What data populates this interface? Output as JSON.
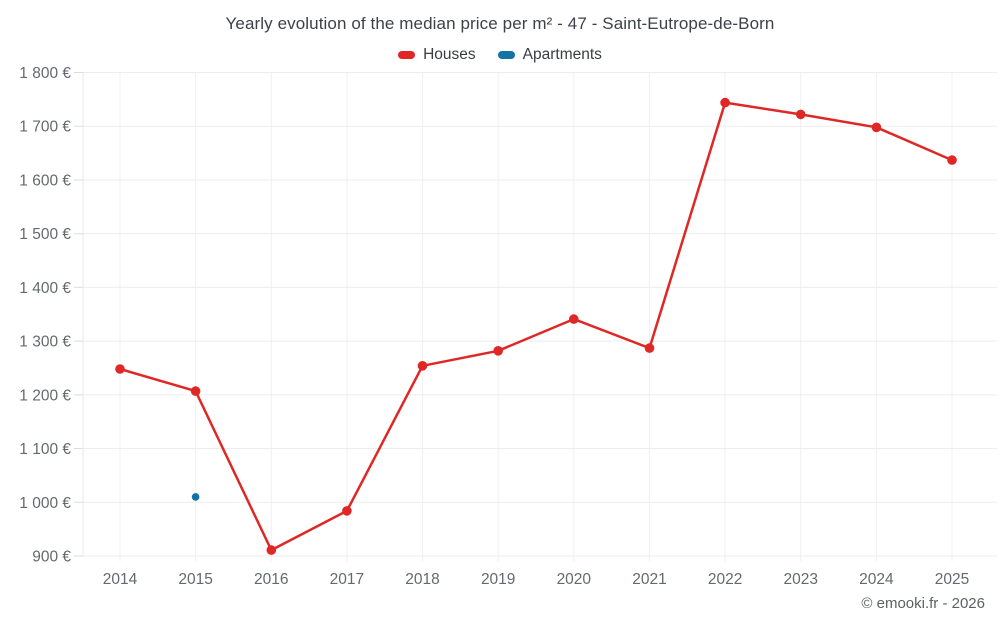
{
  "chart_data": {
    "type": "line",
    "title": "Yearly evolution of the median price per m² - 47 - Saint-Eutrope-de-Born",
    "categories": [
      "2014",
      "2015",
      "2016",
      "2017",
      "2018",
      "2019",
      "2020",
      "2021",
      "2022",
      "2023",
      "2024",
      "2025"
    ],
    "series": [
      {
        "name": "Houses",
        "color": "#df2826",
        "values": [
          1248,
          1207,
          911,
          984,
          1254,
          1282,
          1341,
          1287,
          1744,
          1722,
          1698,
          1637
        ]
      },
      {
        "name": "Apartments",
        "color": "#1273a5",
        "values": [
          null,
          1010,
          null,
          null,
          null,
          null,
          null,
          null,
          null,
          null,
          null,
          null
        ]
      }
    ],
    "ylim": [
      900,
      1800
    ],
    "ytick_step": 100,
    "yticks": [
      {
        "value": 900,
        "label": "900 €"
      },
      {
        "value": 1000,
        "label": "1 000 €"
      },
      {
        "value": 1100,
        "label": "1 100 €"
      },
      {
        "value": 1200,
        "label": "1 200 €"
      },
      {
        "value": 1300,
        "label": "1 300 €"
      },
      {
        "value": 1400,
        "label": "1 400 €"
      },
      {
        "value": 1500,
        "label": "1 500 €"
      },
      {
        "value": 1600,
        "label": "1 600 €"
      },
      {
        "value": 1700,
        "label": "1 700 €"
      },
      {
        "value": 1800,
        "label": "1 800 €"
      }
    ],
    "grid": true,
    "legend_position": "top"
  },
  "footer": {
    "credit": "© emooki.fr - 2026"
  }
}
